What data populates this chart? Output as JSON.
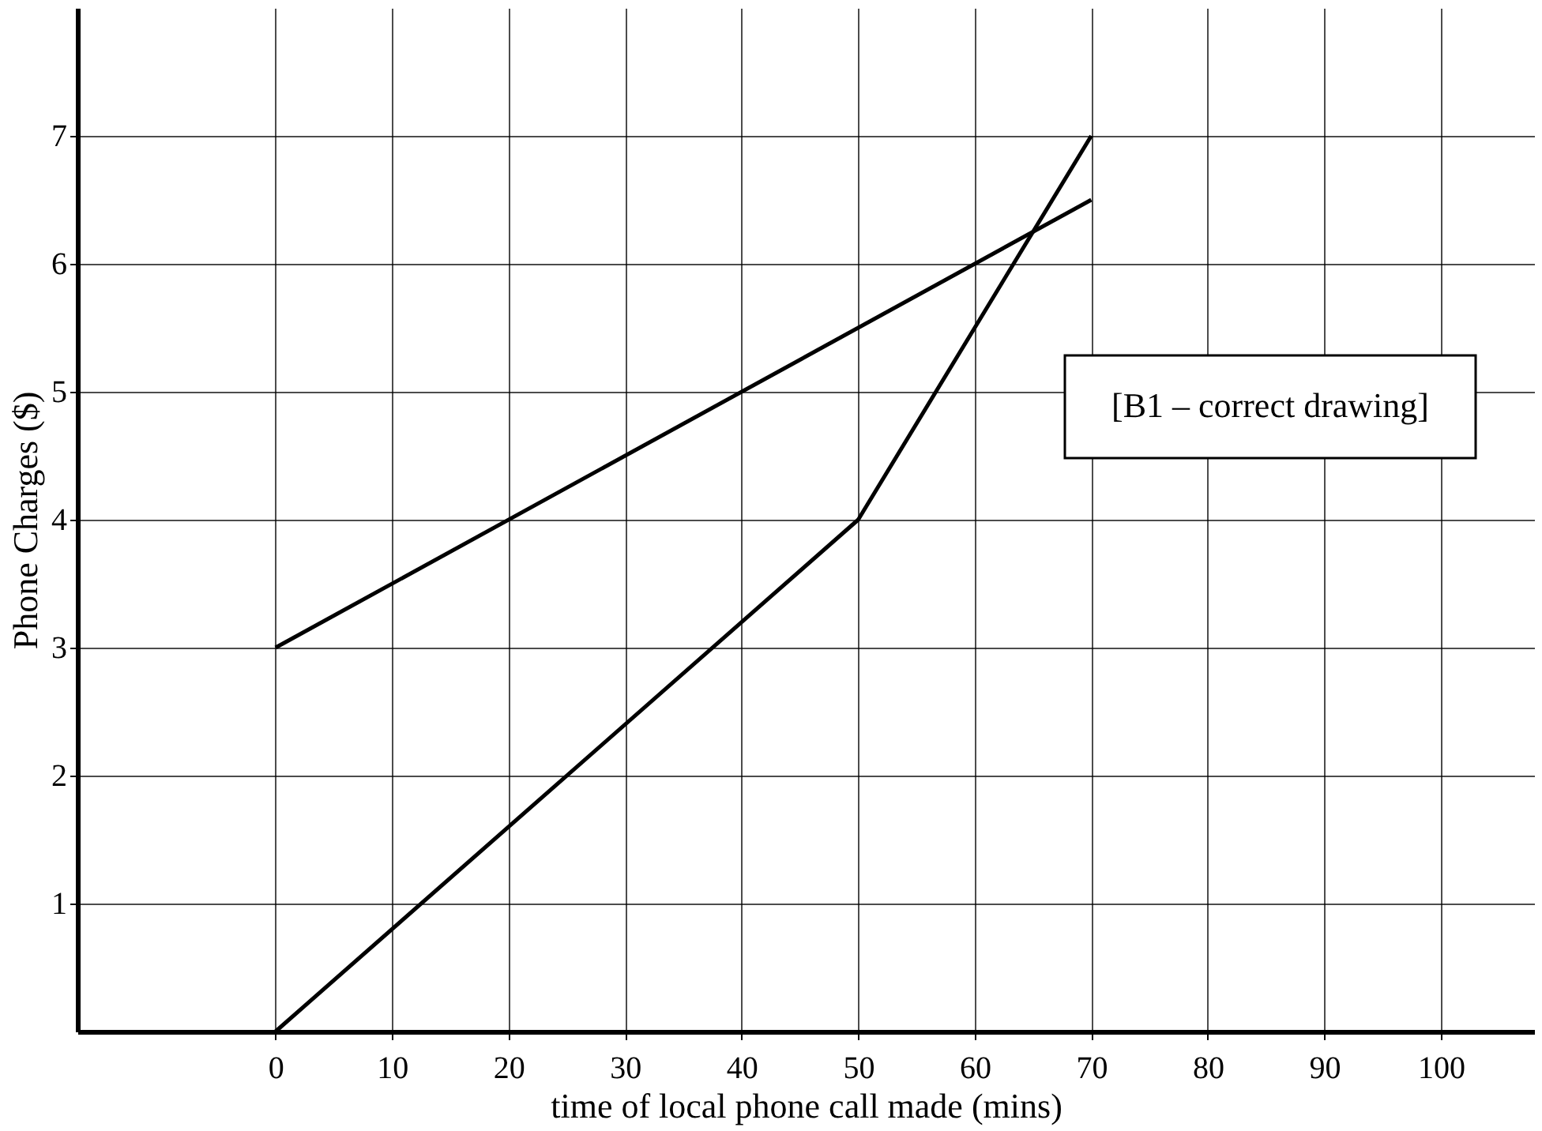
{
  "chart_data": {
    "type": "line",
    "xlabel": "time of local phone call made (mins)",
    "ylabel": "Phone Charges ($)",
    "series": [
      {
        "x": [
          0,
          70
        ],
        "values": [
          3,
          6.5
        ],
        "color": "#000000"
      },
      {
        "x": [
          0,
          50,
          70
        ],
        "values": [
          0,
          4,
          7
        ],
        "color": "#000000"
      }
    ],
    "xlim": [
      -17,
      108
    ],
    "ylim": [
      0,
      8
    ],
    "xticks": [
      0,
      10,
      20,
      30,
      40,
      50,
      60,
      70,
      80,
      90,
      100
    ],
    "yticks": [
      1,
      2,
      3,
      4,
      5,
      6,
      7
    ],
    "grid": true,
    "annotations": [
      "[B1 – correct drawing]"
    ]
  }
}
